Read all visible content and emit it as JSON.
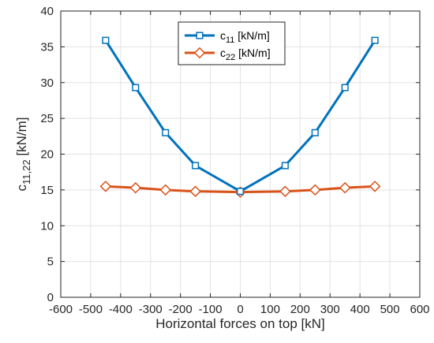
{
  "chart_data": {
    "type": "line",
    "xlabel": "Horizontal forces on top [kN]",
    "ylabel": {
      "base": "c",
      "sub": "11,22",
      "unit": " [kN/m]"
    },
    "xlim": [
      -600,
      600
    ],
    "ylim": [
      0,
      40
    ],
    "xticks": [
      -600,
      -500,
      -400,
      -300,
      -200,
      -100,
      0,
      100,
      200,
      300,
      400,
      500,
      600
    ],
    "yticks": [
      0,
      5,
      10,
      15,
      20,
      25,
      30,
      35,
      40
    ],
    "grid": true,
    "legend_position": "top-center",
    "x": [
      -450,
      -350,
      -250,
      -150,
      0,
      150,
      250,
      350,
      450
    ],
    "series": [
      {
        "name": {
          "base": "c",
          "sub": "11",
          "unit": " [kN/m]"
        },
        "values": [
          35.9,
          29.3,
          23.0,
          18.4,
          14.8,
          18.4,
          23.0,
          29.3,
          35.9
        ],
        "color": "#0072BD",
        "marker": "square"
      },
      {
        "name": {
          "base": "c",
          "sub": "22",
          "unit": " [kN/m]"
        },
        "values": [
          15.5,
          15.3,
          15.0,
          14.8,
          14.7,
          14.8,
          15.0,
          15.3,
          15.5
        ],
        "color": "#D95319",
        "marker": "diamond"
      }
    ]
  }
}
